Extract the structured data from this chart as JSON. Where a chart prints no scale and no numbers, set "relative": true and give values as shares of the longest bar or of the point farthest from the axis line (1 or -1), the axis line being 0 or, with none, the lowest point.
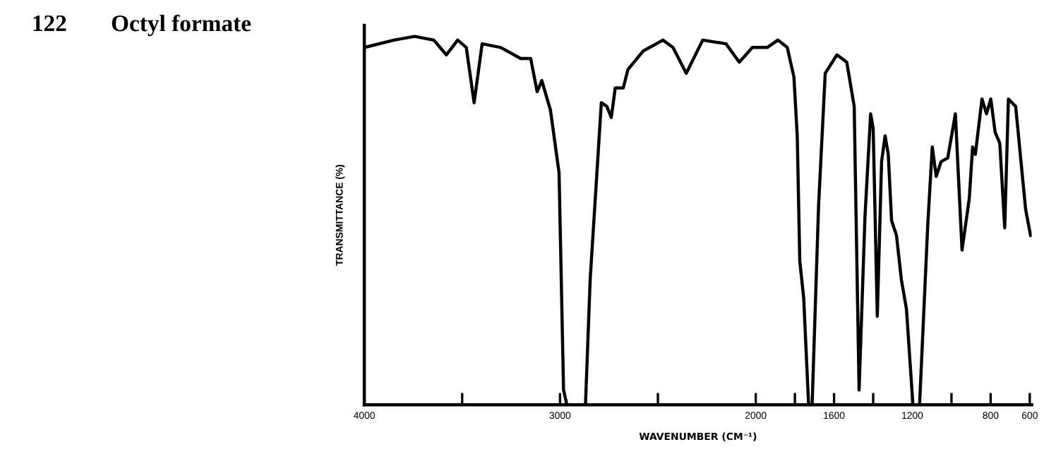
{
  "chart_data": {
    "type": "line",
    "title": "Octyl formate",
    "annotations": [
      "122"
    ],
    "xlabel": "WAVENUMBER (CM⁻¹)",
    "ylabel": "TRANSMITTANCE (%)",
    "relative": true,
    "tick_labels": "x",
    "grid": false,
    "marker": "none",
    "line_style": "solid",
    "xlim": [
      4000,
      590
    ],
    "xticks": [
      4000,
      {
        "value": 3500,
        "label": null
      },
      3000,
      {
        "value": 2500,
        "label": null
      },
      2000,
      {
        "value": 1800,
        "label": null
      },
      1600,
      {
        "value": 1400,
        "label": null
      },
      1200,
      {
        "value": 1000,
        "label": null
      },
      800,
      600
    ],
    "x": [
      4000,
      3848,
      3743,
      3645,
      3581,
      3523,
      3479,
      3439,
      3398,
      3303,
      3201,
      3150,
      3117,
      3093,
      3049,
      3005,
      2982,
      2965,
      2870,
      2846,
      2789,
      2761,
      2738,
      2718,
      2677,
      2653,
      2576,
      2474,
      2423,
      2355,
      2271,
      2152,
      2084,
      2017,
      1941,
      1887,
      1839,
      1822,
      1805,
      1788,
      1775,
      1755,
      1730,
      1712,
      1679,
      1645,
      1585,
      1535,
      1497,
      1472,
      1442,
      1413,
      1400,
      1379,
      1357,
      1339,
      1323,
      1306,
      1281,
      1256,
      1230,
      1197,
      1163,
      1121,
      1098,
      1078,
      1053,
      1019,
      980,
      946,
      909,
      892,
      878,
      844,
      821,
      799,
      777,
      753,
      728,
      709,
      672,
      621,
      596
    ],
    "series": [
      {
        "color": "#000000",
        "values": [
          0.97,
          0.99,
          1.0,
          0.99,
          0.95,
          0.99,
          0.97,
          0.82,
          0.98,
          0.97,
          0.94,
          0.94,
          0.85,
          0.88,
          0.8,
          0.63,
          0.04,
          0,
          0,
          0.34,
          0.82,
          0.81,
          0.78,
          0.86,
          0.86,
          0.91,
          0.96,
          0.99,
          0.97,
          0.9,
          0.99,
          0.98,
          0.93,
          0.97,
          0.97,
          0.99,
          0.97,
          0.93,
          0.89,
          0.73,
          0.39,
          0.29,
          0,
          0,
          0.54,
          0.9,
          0.95,
          0.93,
          0.81,
          0.04,
          0.51,
          0.79,
          0.75,
          0.24,
          0.66,
          0.73,
          0.68,
          0.5,
          0.46,
          0.34,
          0.26,
          0,
          0,
          0.49,
          0.7,
          0.62,
          0.66,
          0.67,
          0.79,
          0.42,
          0.56,
          0.7,
          0.68,
          0.83,
          0.79,
          0.83,
          0.74,
          0.71,
          0.48,
          0.83,
          0.81,
          0.53,
          0.46
        ]
      }
    ]
  }
}
